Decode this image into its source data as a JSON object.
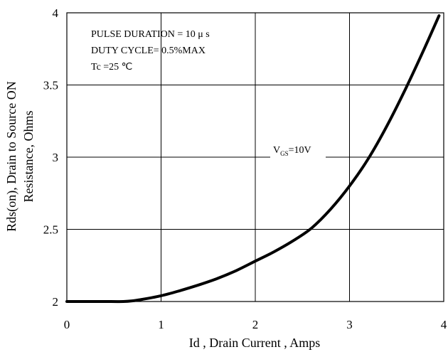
{
  "chart_data": {
    "type": "line",
    "xlabel": "Id , Drain Current , Amps",
    "ylabel_lines": [
      "Rds(on), Drain to Source ON",
      "Resistance, Ohms"
    ],
    "xlim": [
      0,
      4
    ],
    "ylim": [
      2,
      4
    ],
    "x_ticks": [
      0,
      1,
      2,
      3,
      4
    ],
    "x_tick_labels": [
      "0",
      "1",
      "2",
      "3",
      "4"
    ],
    "y_ticks": [
      2,
      2.5,
      3,
      3.5,
      4
    ],
    "y_tick_labels": [
      "2",
      "2.5",
      "3",
      "3.5",
      "4"
    ],
    "grid": true,
    "notes": [
      "PULSE   DURATION = 10 μ s",
      "DUTY   CYCLE= 0.5%MAX",
      "Tc =25  ℃"
    ],
    "series": [
      {
        "label_main": "V",
        "label_sub": "GS",
        "label_rest": "=10V",
        "x": [
          0,
          0.2,
          0.4,
          0.6,
          0.7,
          0.8,
          1.0,
          1.2,
          1.4,
          1.6,
          1.8,
          2.0,
          2.2,
          2.4,
          2.6,
          2.8,
          3.0,
          3.2,
          3.4,
          3.6,
          3.8,
          3.95
        ],
        "y": [
          2.0,
          2.0,
          2.0,
          2.0,
          2.005,
          2.015,
          2.04,
          2.075,
          2.115,
          2.16,
          2.215,
          2.28,
          2.345,
          2.42,
          2.51,
          2.64,
          2.8,
          2.99,
          3.22,
          3.48,
          3.76,
          3.98
        ]
      }
    ]
  }
}
